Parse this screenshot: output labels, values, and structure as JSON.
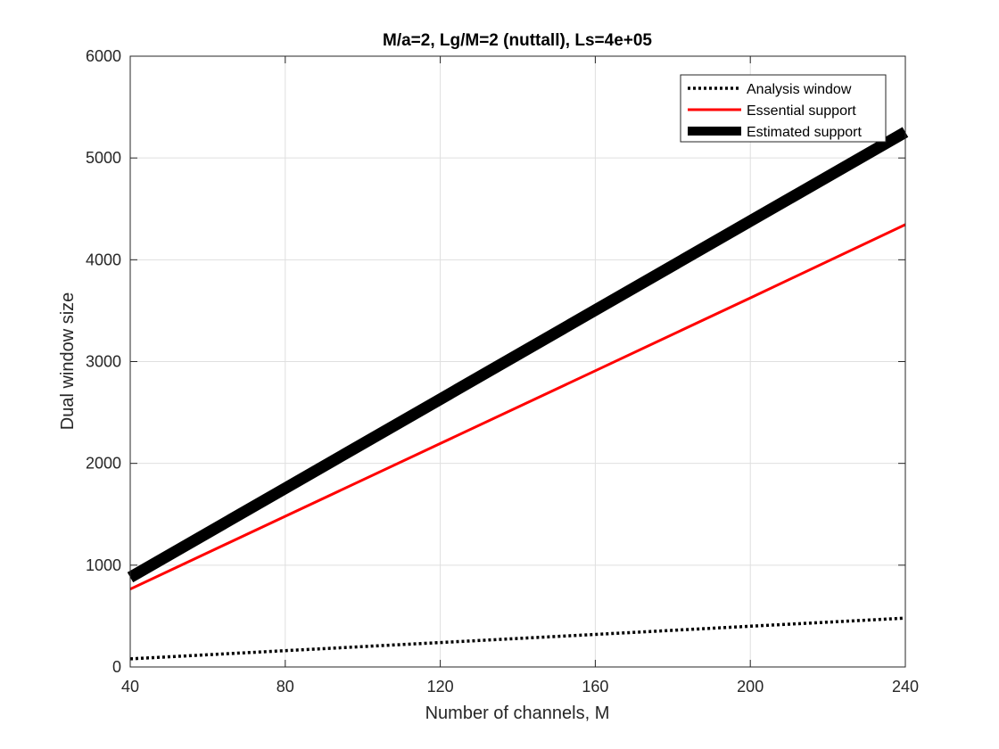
{
  "chart_data": {
    "type": "line",
    "title": "M/a=2, Lg/M=2 (nuttall), Ls=4e+05",
    "xlabel": "Number of channels, M",
    "ylabel": "Dual window size",
    "xlim": [
      40,
      240
    ],
    "ylim": [
      0,
      6000
    ],
    "x_ticks": [
      40,
      80,
      120,
      160,
      200,
      240
    ],
    "y_ticks": [
      0,
      1000,
      2000,
      3000,
      4000,
      5000,
      6000
    ],
    "grid": true,
    "legend_position": "top-right",
    "series": [
      {
        "name": "Analysis window",
        "color": "#000000",
        "style": "dotted",
        "x": [
          40,
          80,
          120,
          160,
          200,
          240
        ],
        "y": [
          80,
          160,
          240,
          320,
          400,
          480
        ]
      },
      {
        "name": "Essential support",
        "color": "#ff0000",
        "style": "solid",
        "x": [
          40,
          80,
          120,
          160,
          200,
          240
        ],
        "y": [
          765,
          1480,
          2195,
          2910,
          3625,
          4345
        ]
      },
      {
        "name": "Estimated support",
        "color": "#000000",
        "style": "thick",
        "x": [
          40,
          80,
          120,
          160,
          200,
          240
        ],
        "y": [
          880,
          1755,
          2630,
          3505,
          4380,
          5255
        ]
      }
    ]
  }
}
